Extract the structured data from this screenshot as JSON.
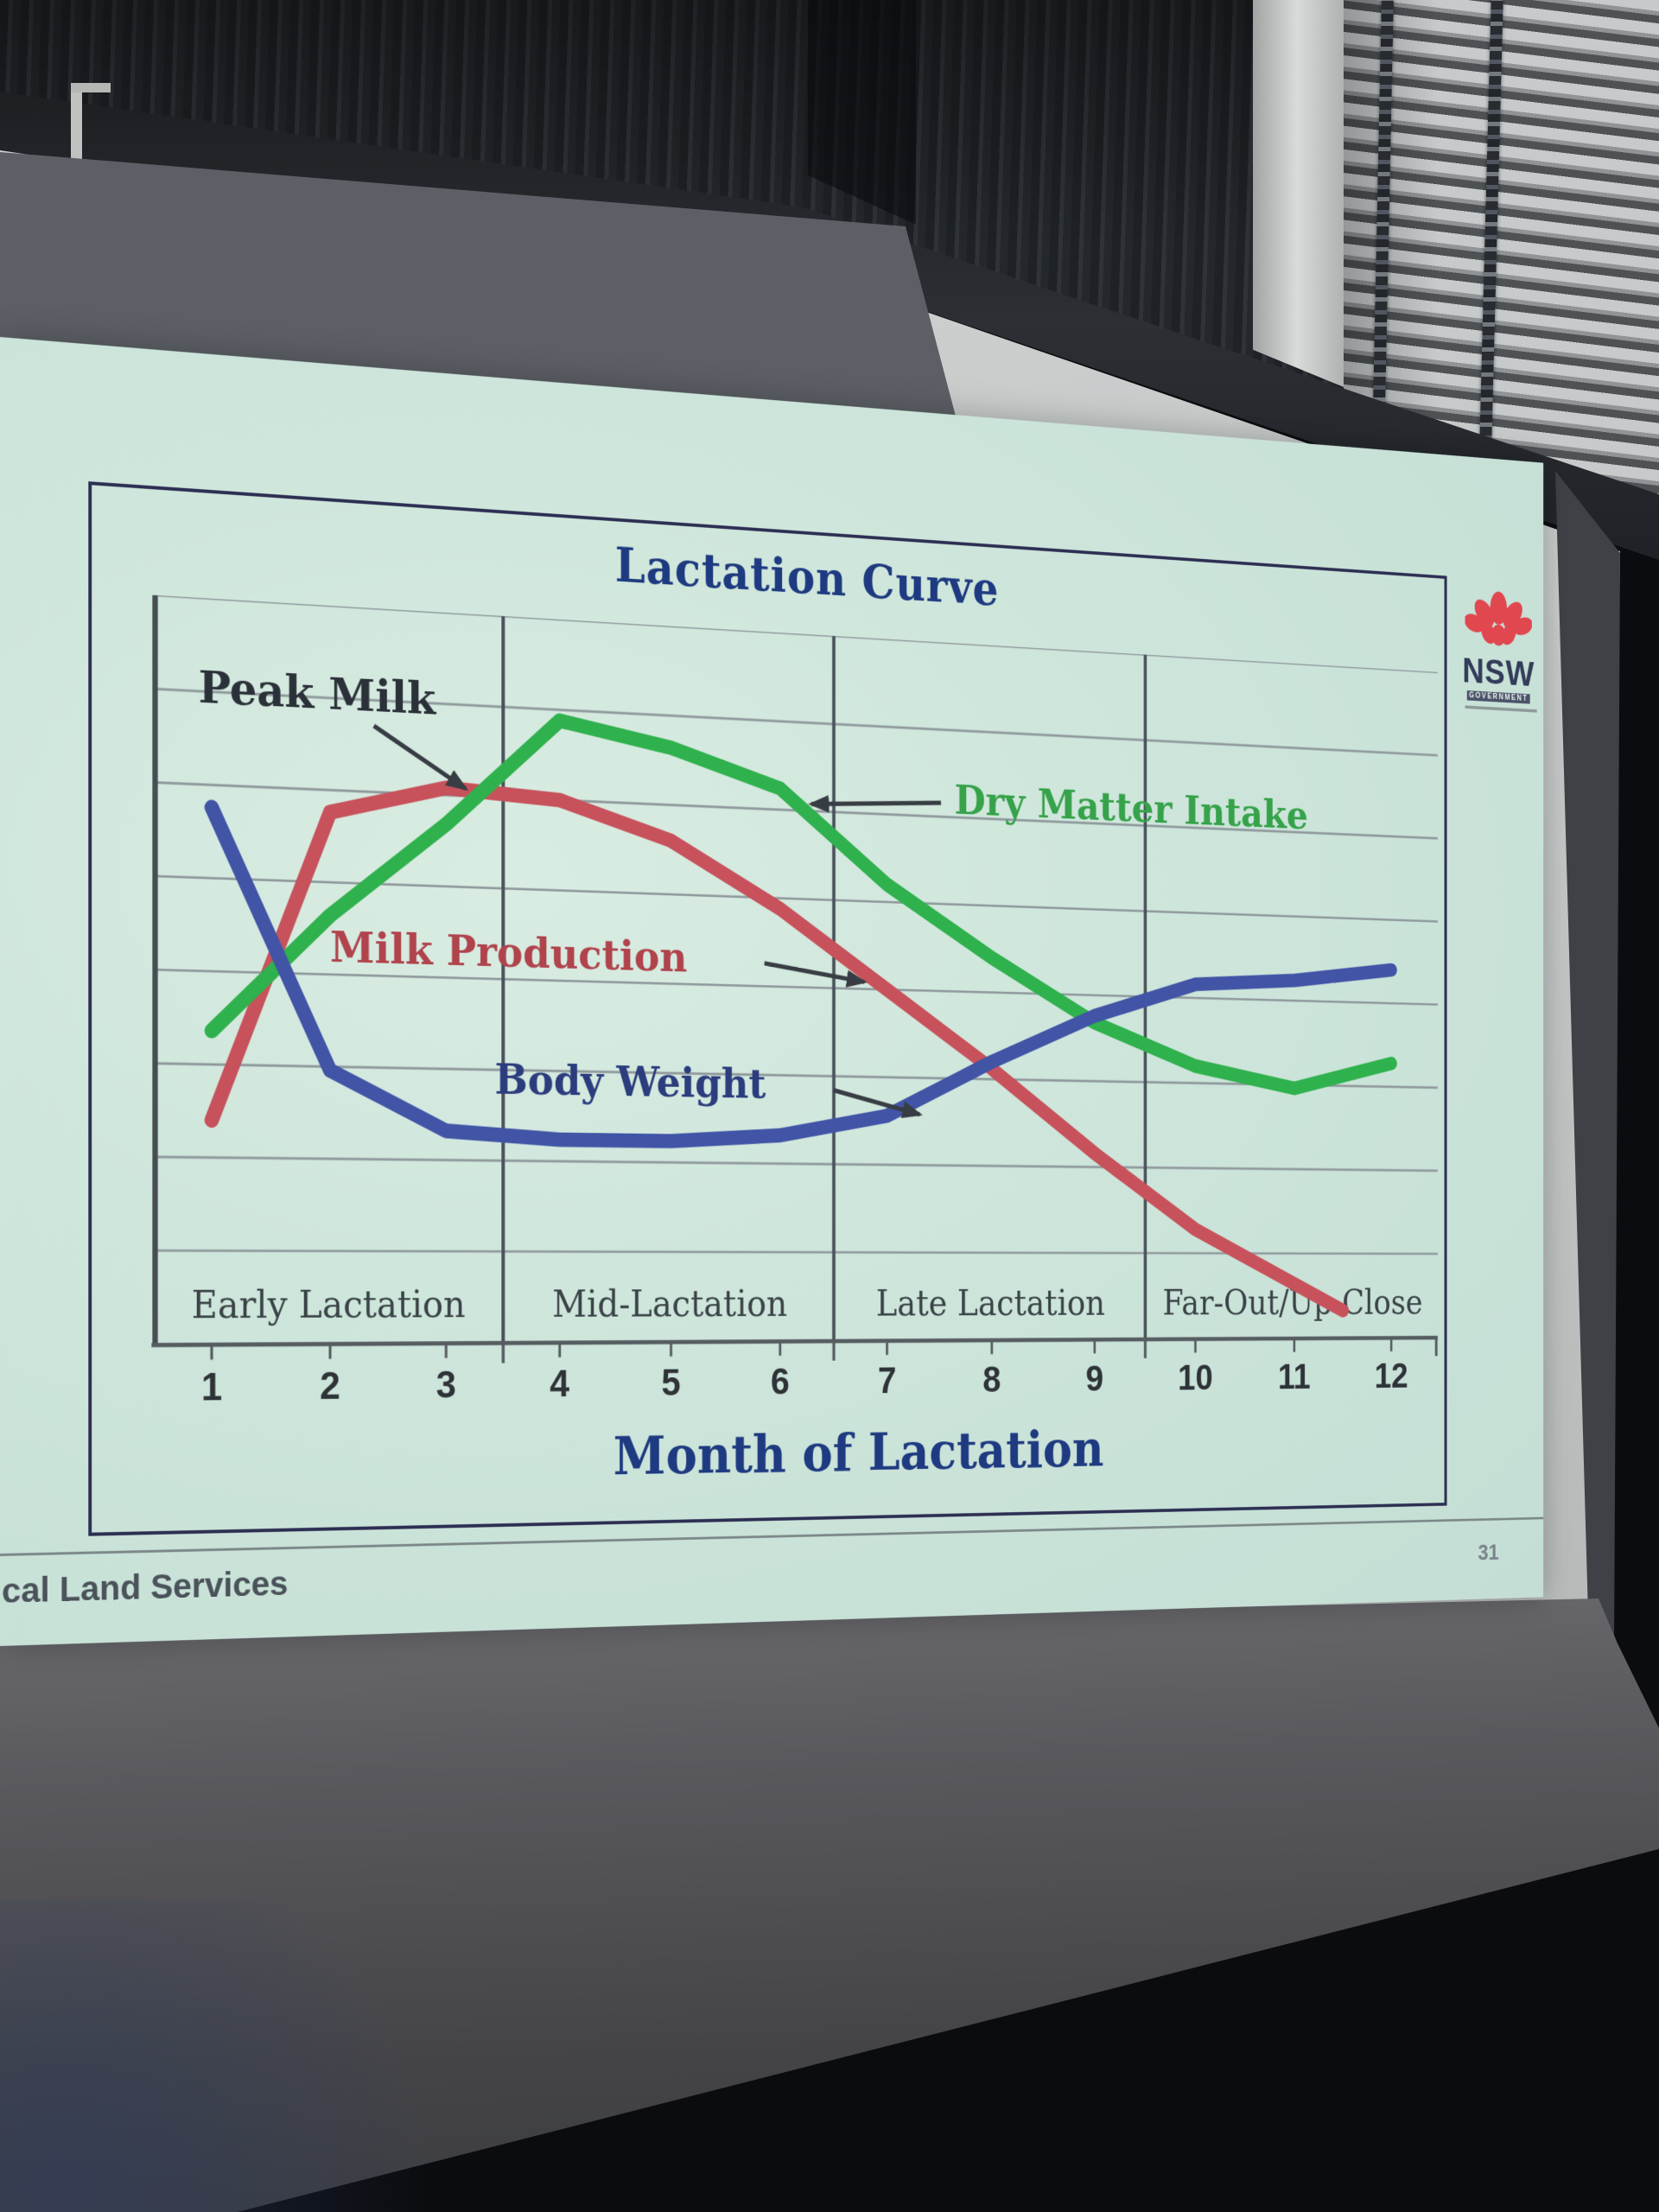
{
  "slide": {
    "page_number": "31",
    "footer_text": "cal Land Services",
    "logo": {
      "icon": "nsw-waratah-flower-icon",
      "name": "NSW",
      "subtext": "GOVERNMENT",
      "flower_color": "#e0474f",
      "text_color": "#333c59"
    }
  },
  "chart_data": {
    "type": "line",
    "title": "Lactation Curve",
    "xlabel": "Month of Lactation",
    "ylabel": "",
    "x": [
      1,
      2,
      3,
      4,
      5,
      6,
      7,
      8,
      9,
      10,
      11,
      12
    ],
    "x_tick_labels": [
      "1",
      "2",
      "3",
      "4",
      "5",
      "6",
      "7",
      "8",
      "9",
      "10",
      "11",
      "12"
    ],
    "stage_labels": [
      "Early Lactation",
      "Mid-Lactation",
      "Late Lactation",
      "Far-Out/Up-Close"
    ],
    "ylim": [
      0,
      100
    ],
    "value_scale": "relative percent of plot height (no numeric y-axis labels shown)",
    "grid": true,
    "legend_position": "inline-annotations",
    "series": [
      {
        "id": "milk_production",
        "name": "Milk Production",
        "color": "#c7525b",
        "months": [
          1,
          2,
          3,
          4,
          5,
          6,
          7,
          8,
          9,
          10,
          11,
          11.5
        ],
        "values": [
          30,
          72,
          76,
          75,
          70,
          61,
          50,
          39,
          27,
          16,
          8,
          4
        ]
      },
      {
        "id": "dry_matter_intake",
        "name": "Dry Matter Intake",
        "color": "#2fb14d",
        "months": [
          1,
          2,
          3,
          4,
          5,
          6,
          7,
          8,
          9,
          10,
          11,
          12
        ],
        "values": [
          42,
          58,
          71,
          86,
          83,
          78,
          65,
          55,
          46,
          40,
          37,
          41
        ]
      },
      {
        "id": "body_weight",
        "name": "Body Weight",
        "color": "#4154a6",
        "months": [
          1,
          2,
          3,
          4,
          5,
          6,
          7,
          8,
          9,
          10,
          11,
          12
        ],
        "values": [
          72,
          37,
          29,
          28,
          28,
          29,
          32,
          40,
          47,
          52,
          53,
          55
        ]
      }
    ],
    "annotations": [
      {
        "id": "peak_milk",
        "text": "Peak Milk",
        "color": "#2b3138"
      },
      {
        "id": "dmi",
        "text": "Dry Matter Intake",
        "color": "#36a24a"
      },
      {
        "id": "milk",
        "text": "Milk Production",
        "color": "#b0434c"
      },
      {
        "id": "bw",
        "text": "Body Weight",
        "color": "#2c3d7e"
      }
    ]
  }
}
